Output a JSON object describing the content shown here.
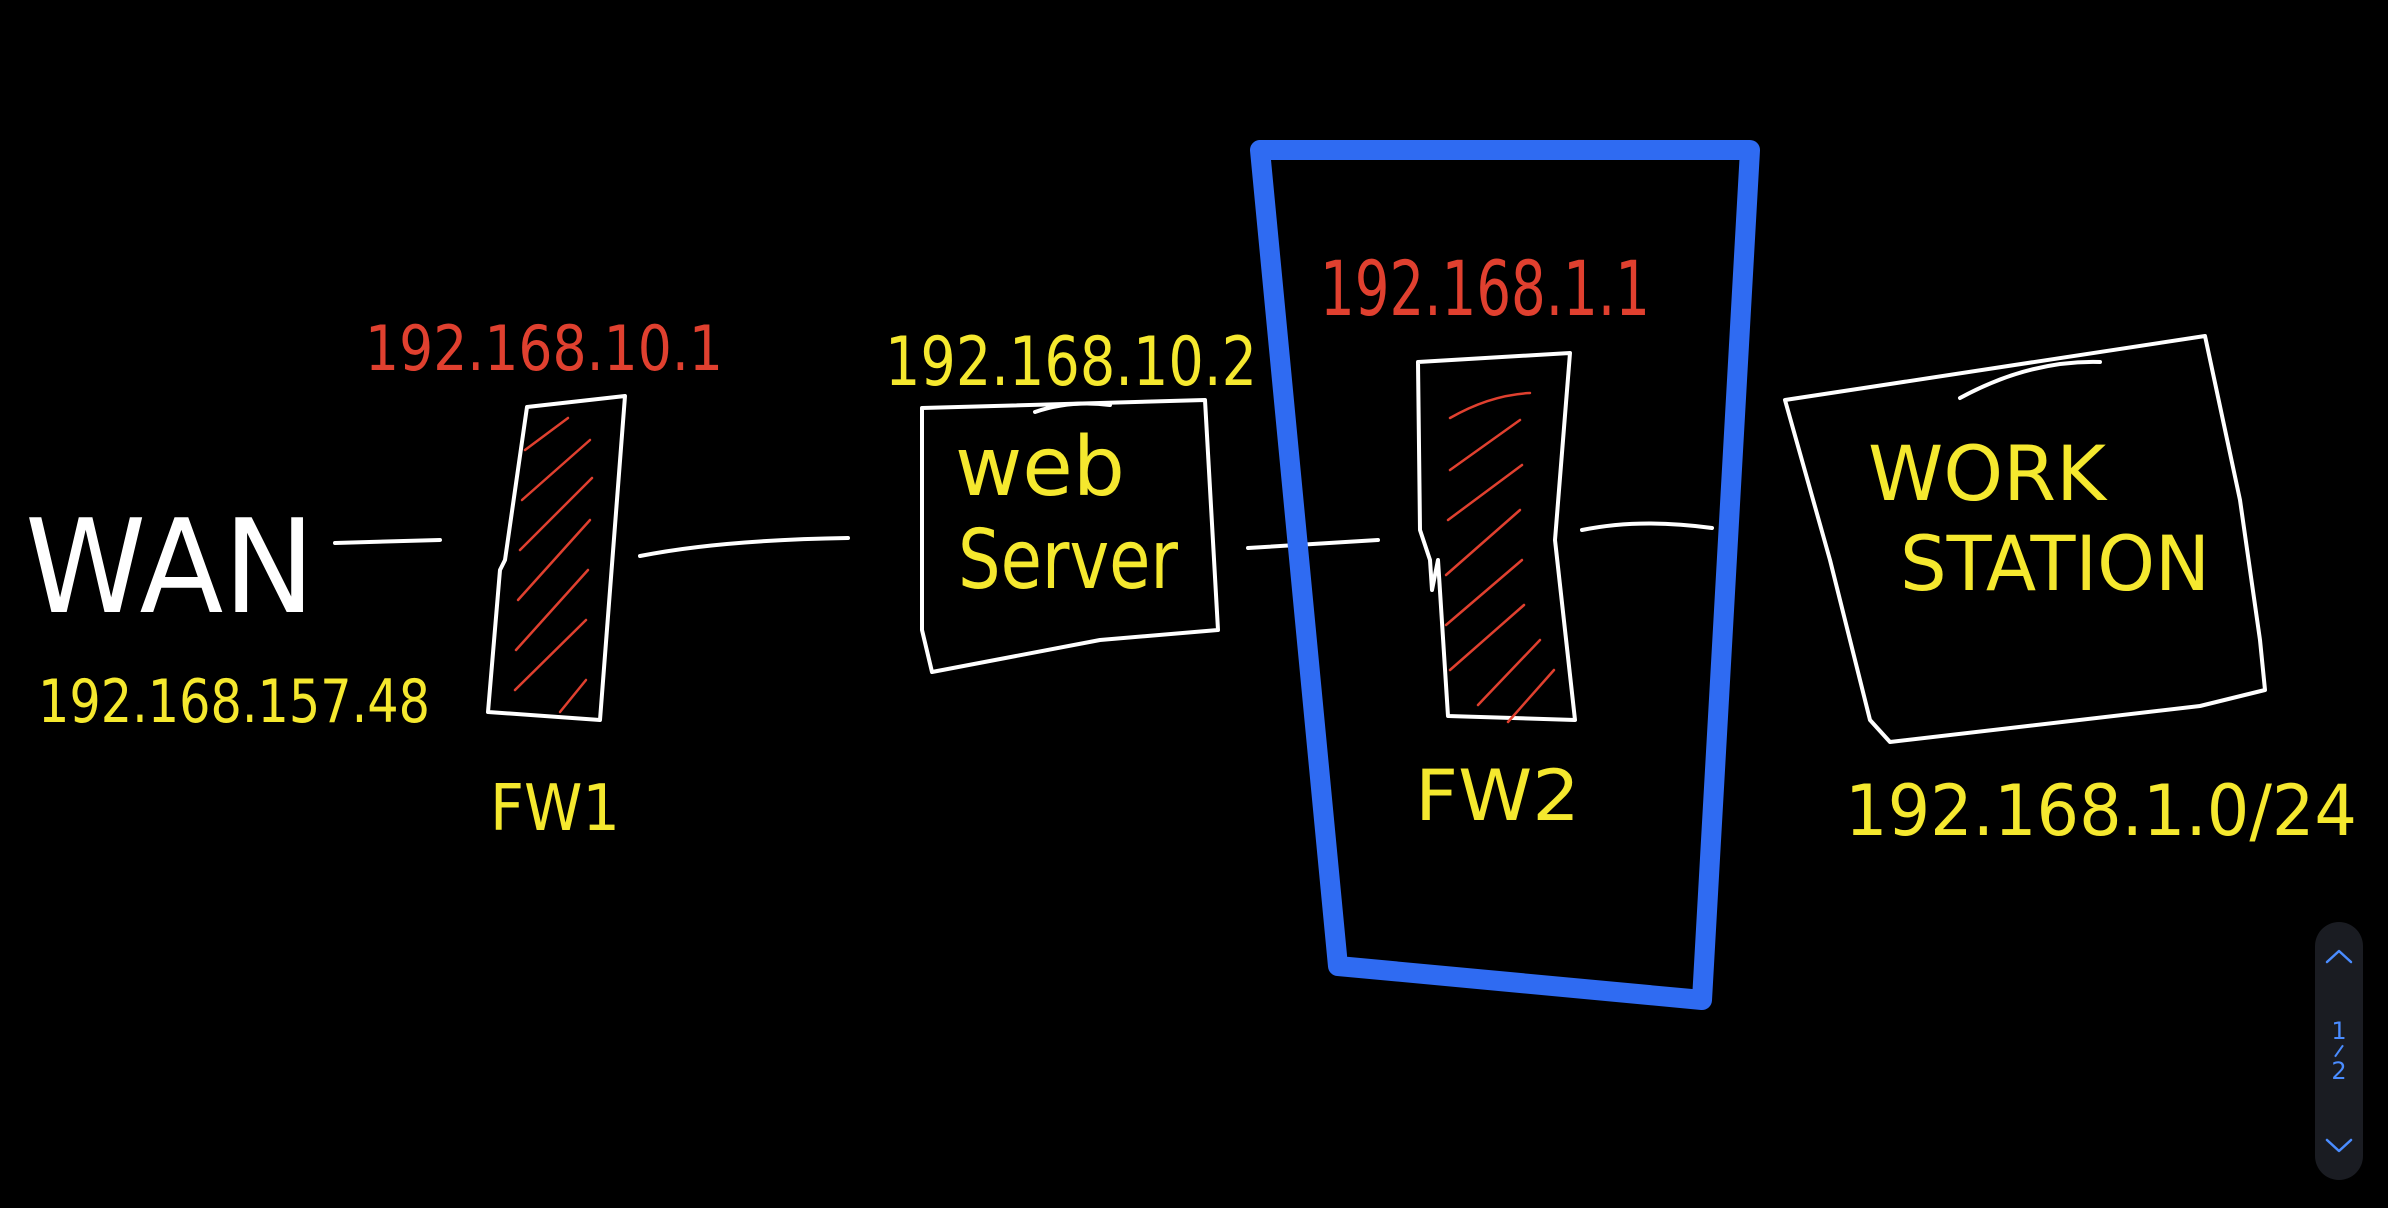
{
  "diagram": {
    "labels": {
      "wan": "WAN",
      "wan_ip": "192.168.157.48",
      "fw1": "FW1",
      "fw1_ip": "192.168.10.1",
      "web_server_line1": "web",
      "web_server_line2": "Server",
      "web_server_ip": "192.168.10.2",
      "fw2": "FW2",
      "fw2_ip": "192.168.1.1",
      "workstation_line1": "WORK",
      "workstation_line2": "STATION",
      "workstation_subnet": "192.168.1.0/24"
    },
    "colors": {
      "background": "#000000",
      "lines": "#ffffff",
      "label_yellow": "#f5e82e",
      "label_red": "#e0402f",
      "highlight_blue": "#2f6bf2"
    }
  },
  "pager": {
    "current": "1",
    "total": "2",
    "up_icon": "chevron-up-icon",
    "down_icon": "chevron-down-icon"
  }
}
